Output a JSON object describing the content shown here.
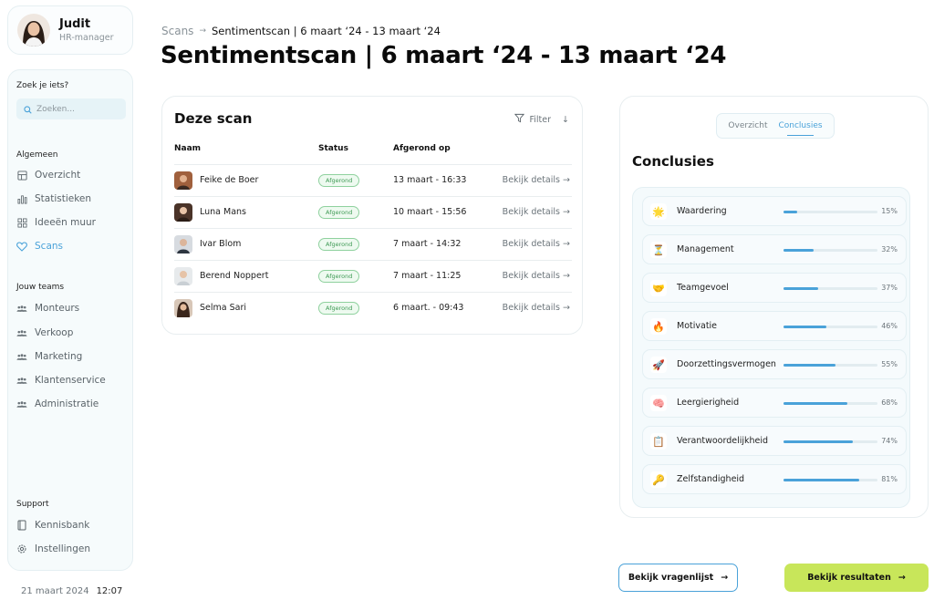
{
  "user": {
    "name": "Judit",
    "role": "HR-manager"
  },
  "sidebar": {
    "search_label": "Zoek je iets?",
    "search_placeholder": "Zoeken...",
    "general_label": "Algemeen",
    "general_items": [
      {
        "label": "Overzicht",
        "icon": "layout-icon"
      },
      {
        "label": "Statistieken",
        "icon": "bar-chart-icon"
      },
      {
        "label": "Ideeën muur",
        "icon": "grid-icon"
      },
      {
        "label": "Scans",
        "icon": "heart-icon",
        "active": true
      }
    ],
    "teams_label": "Jouw teams",
    "teams": [
      {
        "label": "Monteurs"
      },
      {
        "label": "Verkoop"
      },
      {
        "label": "Marketing"
      },
      {
        "label": "Klantenservice"
      },
      {
        "label": "Administratie"
      }
    ],
    "support_label": "Support",
    "support_items": [
      {
        "label": "Kennisbank",
        "icon": "bookmark-icon"
      },
      {
        "label": "Instellingen",
        "icon": "gear-icon"
      }
    ]
  },
  "footer": {
    "date": "21 maart 2024",
    "time": "12:07"
  },
  "breadcrumb": {
    "parent": "Scans",
    "current": "Sentimentscan | 6 maart ‘24 - 13 maart ‘24"
  },
  "page_title": "Sentimentscan | 6 maart ‘24 - 13 maart ‘24",
  "scan_table": {
    "title": "Deze scan",
    "filter_label": "Filter",
    "columns": {
      "name": "Naam",
      "status": "Status",
      "completed": "Afgerond op"
    },
    "details_label": "Bekijk details",
    "rows": [
      {
        "name": "Feike de Boer",
        "status": "Afgerond",
        "date": "13 maart - 16:33"
      },
      {
        "name": "Luna Mans",
        "status": "Afgerond",
        "date": "10 maart - 15:56"
      },
      {
        "name": "Ivar Blom",
        "status": "Afgerond",
        "date": "7 maart - 14:32"
      },
      {
        "name": "Berend Noppert",
        "status": "Afgerond",
        "date": "7 maart - 11:25"
      },
      {
        "name": "Selma Sari",
        "status": "Afgerond",
        "date": "6 maart. - 09:43"
      }
    ]
  },
  "conclusions": {
    "tabs": [
      {
        "label": "Overzicht",
        "active": false
      },
      {
        "label": "Conclusies",
        "active": true
      }
    ],
    "title": "Conclusies",
    "accent_color": "#4aa2d9",
    "items": [
      {
        "emoji": "🌟",
        "label": "Waardering",
        "percent": 15,
        "percent_label": "15%"
      },
      {
        "emoji": "⏳",
        "label": "Management",
        "percent": 32,
        "percent_label": "32%"
      },
      {
        "emoji": "🤝",
        "label": "Teamgevoel",
        "percent": 37,
        "percent_label": "37%"
      },
      {
        "emoji": "🔥",
        "label": "Motivatie",
        "percent": 46,
        "percent_label": "46%"
      },
      {
        "emoji": "🚀",
        "label": "Doorzettingsvermogen",
        "percent": 55,
        "percent_label": "55%"
      },
      {
        "emoji": "🧠",
        "label": "Leergierigheid",
        "percent": 68,
        "percent_label": "68%"
      },
      {
        "emoji": "📋",
        "label": "Verantwoordelijkheid",
        "percent": 74,
        "percent_label": "74%"
      },
      {
        "emoji": "🔑",
        "label": "Zelfstandigheid",
        "percent": 81,
        "percent_label": "81%"
      }
    ]
  },
  "buttons": {
    "questionnaire": "Bekijk vragenlijst",
    "results": "Bekijk resultaten"
  }
}
